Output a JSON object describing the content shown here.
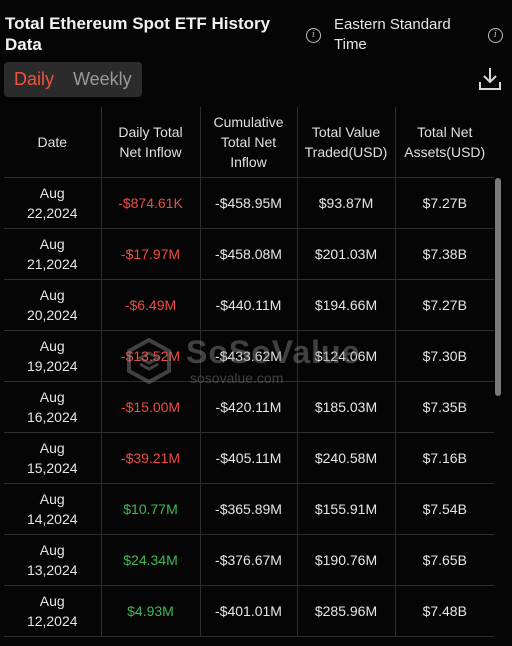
{
  "header": {
    "title": "Total Ethereum Spot ETF History Data",
    "timezone": "Eastern Standard Time"
  },
  "tabs": [
    {
      "label": "Daily",
      "active": true
    },
    {
      "label": "Weekly",
      "active": false
    }
  ],
  "table": {
    "columns": [
      "Date",
      "Daily Total Net Inflow",
      "Cumulative Total Net Inflow",
      "Total Value Traded(USD)",
      "Total Net Assets(USD)"
    ],
    "rows": [
      {
        "date": "Aug 22,2024",
        "daily": "-$874.61K",
        "dir": "neg",
        "cumulative": "-$458.95M",
        "traded": "$93.87M",
        "assets": "$7.27B"
      },
      {
        "date": "Aug 21,2024",
        "daily": "-$17.97M",
        "dir": "neg",
        "cumulative": "-$458.08M",
        "traded": "$201.03M",
        "assets": "$7.38B"
      },
      {
        "date": "Aug 20,2024",
        "daily": "-$6.49M",
        "dir": "neg",
        "cumulative": "-$440.11M",
        "traded": "$194.66M",
        "assets": "$7.27B"
      },
      {
        "date": "Aug 19,2024",
        "daily": "-$13.52M",
        "dir": "neg",
        "cumulative": "-$433.62M",
        "traded": "$124.06M",
        "assets": "$7.30B"
      },
      {
        "date": "Aug 16,2024",
        "daily": "-$15.00M",
        "dir": "neg",
        "cumulative": "-$420.11M",
        "traded": "$185.03M",
        "assets": "$7.35B"
      },
      {
        "date": "Aug 15,2024",
        "daily": "-$39.21M",
        "dir": "neg",
        "cumulative": "-$405.11M",
        "traded": "$240.58M",
        "assets": "$7.16B"
      },
      {
        "date": "Aug 14,2024",
        "daily": "$10.77M",
        "dir": "pos",
        "cumulative": "-$365.89M",
        "traded": "$155.91M",
        "assets": "$7.54B"
      },
      {
        "date": "Aug 13,2024",
        "daily": "$24.34M",
        "dir": "pos",
        "cumulative": "-$376.67M",
        "traded": "$190.76M",
        "assets": "$7.65B"
      },
      {
        "date": "Aug 12,2024",
        "daily": "$4.93M",
        "dir": "pos",
        "cumulative": "-$401.01M",
        "traded": "$285.96M",
        "assets": "$7.48B"
      }
    ]
  },
  "watermark": {
    "name": "SoSoValue",
    "url": "sosovalue.com"
  },
  "icons": {
    "info": "info-icon",
    "download": "download-icon"
  },
  "colors": {
    "negative": "#ef4b44",
    "positive": "#3fbb57",
    "active_tab": "#f0533f"
  }
}
